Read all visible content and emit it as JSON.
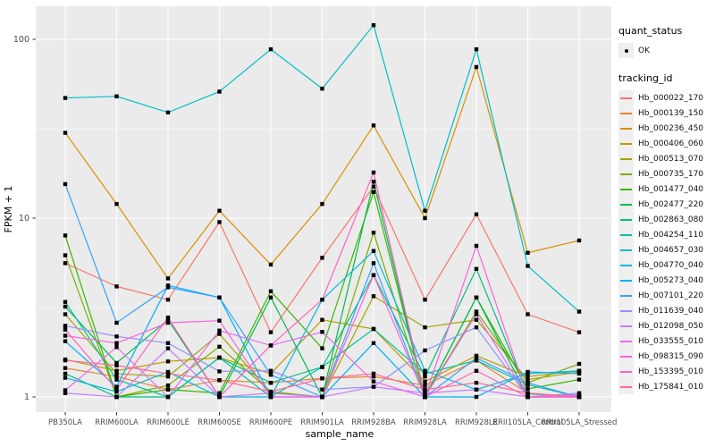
{
  "panel": {
    "bg": "#EBEBEB",
    "grid_color": "#FFFFFF",
    "key_bg": "#EFEFEF",
    "tick_text_color": "#4D4D4D",
    "axis_title_color": "#000000",
    "point_color": "#000000"
  },
  "chart_data": {
    "type": "line",
    "title": "",
    "xlabel": "sample_name",
    "ylabel": "FPKM + 1",
    "y_scale": "log10",
    "y_ticks": [
      1,
      10,
      100
    ],
    "y_tick_labels": [
      "1",
      "10",
      "100"
    ],
    "y_minor": [
      3.162,
      31.62
    ],
    "ylim": [
      0.95,
      140
    ],
    "grid": true,
    "legend_position": "right",
    "legend_quant": {
      "title": "quant_status",
      "entries": [
        {
          "label": "OK",
          "marker": "point"
        }
      ]
    },
    "legend_series_title": "tracking_id",
    "categories": [
      "PB350LA",
      "RRIM600LA",
      "RRIM600LE",
      "RRIM600SE",
      "RRIM600PE",
      "RRIM901LA",
      "RRIM928BA",
      "RRIM928LA",
      "RRIM928LE",
      "RRII105LA_Control",
      "RRII105LA_Stressed"
    ],
    "series": [
      {
        "name": "Hb_000022_170",
        "color": "#F8766D",
        "values": [
          5.6,
          4.15,
          3.5,
          9.5,
          2.3,
          6.0,
          15.0,
          3.5,
          10.5,
          2.9,
          2.3
        ]
      },
      {
        "name": "Hb_000139_150",
        "color": "#EA8331",
        "values": [
          1.45,
          1.3,
          1.1,
          1.24,
          1.2,
          1.27,
          1.3,
          1.16,
          1.6,
          1.05,
          1.0
        ]
      },
      {
        "name": "Hb_000236_450",
        "color": "#D89000",
        "values": [
          30,
          12,
          4.6,
          11,
          5.5,
          12,
          33,
          10,
          70,
          6.4,
          7.5
        ]
      },
      {
        "name": "Hb_000406_060",
        "color": "#C09B00",
        "values": [
          1.62,
          1.4,
          1.58,
          1.66,
          1.35,
          2.7,
          2.4,
          1.22,
          1.7,
          1.3,
          1.4
        ]
      },
      {
        "name": "Hb_000513_070",
        "color": "#A3A500",
        "values": [
          2.9,
          1.35,
          1.3,
          2.25,
          1.05,
          1.0,
          3.66,
          2.45,
          2.7,
          1.25,
          1.38
        ]
      },
      {
        "name": "Hb_000735_170",
        "color": "#7CAE00",
        "values": [
          6.2,
          1.0,
          1.16,
          1.91,
          1.07,
          1.0,
          8.3,
          1.0,
          3.0,
          1.2,
          1.53
        ]
      },
      {
        "name": "Hb_001477_040",
        "color": "#39B600",
        "values": [
          8.0,
          1.0,
          1.1,
          1.05,
          3.9,
          1.87,
          14.0,
          1.0,
          3.6,
          1.11,
          1.25
        ]
      },
      {
        "name": "Hb_002477_220",
        "color": "#00BB4E",
        "values": [
          3.2,
          1.55,
          2.7,
          1.0,
          3.6,
          1.0,
          16.0,
          1.0,
          3.6,
          1.0,
          1.0
        ]
      },
      {
        "name": "Hb_002863_080",
        "color": "#00BF7D",
        "values": [
          1.35,
          1.0,
          1.0,
          1.66,
          1.2,
          1.47,
          4.8,
          1.3,
          5.2,
          1.04,
          1.0
        ]
      },
      {
        "name": "Hb_004254_110",
        "color": "#00C1A3",
        "values": [
          3.4,
          1.25,
          1.0,
          1.66,
          1.0,
          1.47,
          2.4,
          1.35,
          1.6,
          1.17,
          1.0
        ]
      },
      {
        "name": "Hb_004657_030",
        "color": "#00BFC4",
        "values": [
          47,
          48,
          39,
          51,
          88,
          53,
          120,
          11,
          88,
          5.4,
          3.0
        ]
      },
      {
        "name": "Hb_004770_040",
        "color": "#00BAE0",
        "values": [
          1.28,
          1.07,
          1.38,
          1.0,
          1.0,
          3.5,
          6.55,
          1.4,
          1.1,
          1.35,
          1.4
        ]
      },
      {
        "name": "Hb_005273_040",
        "color": "#00B0F6",
        "values": [
          2.05,
          1.14,
          4.2,
          3.6,
          1.0,
          1.0,
          2.0,
          1.0,
          1.0,
          1.38,
          1.35
        ]
      },
      {
        "name": "Hb_007101_220",
        "color": "#35A2FF",
        "values": [
          15.5,
          2.6,
          4.1,
          3.6,
          1.33,
          1.0,
          5.6,
          1.0,
          1.65,
          1.2,
          1.0
        ]
      },
      {
        "name": "Hb_011639_040",
        "color": "#9590FF",
        "values": [
          2.5,
          2.18,
          2.0,
          1.39,
          1.4,
          1.1,
          1.14,
          1.82,
          2.45,
          1.0,
          1.05
        ]
      },
      {
        "name": "Hb_012098_050",
        "color": "#C77CFF",
        "values": [
          1.05,
          1.0,
          1.87,
          1.0,
          1.05,
          1.0,
          1.14,
          1.05,
          1.1,
          1.0,
          1.0
        ]
      },
      {
        "name": "Hb_033555_010",
        "color": "#E76BF3",
        "values": [
          1.09,
          1.9,
          1.0,
          2.35,
          1.94,
          2.31,
          1.22,
          1.0,
          2.9,
          1.0,
          1.0
        ]
      },
      {
        "name": "Hb_098315_090",
        "color": "#FA62DB",
        "values": [
          2.2,
          2.0,
          2.6,
          2.67,
          1.0,
          1.0,
          4.8,
          1.0,
          7.0,
          1.0,
          1.03
        ]
      },
      {
        "name": "Hb_153395_010",
        "color": "#FF61C3",
        "values": [
          2.38,
          1.1,
          2.78,
          1.0,
          1.94,
          3.5,
          18.0,
          1.0,
          1.4,
          1.0,
          1.0
        ]
      },
      {
        "name": "Hb_175841_010",
        "color": "#FF6A98",
        "values": [
          1.6,
          1.5,
          1.35,
          1.24,
          1.07,
          1.27,
          1.35,
          1.1,
          1.2,
          1.05,
          1.0
        ]
      }
    ]
  }
}
